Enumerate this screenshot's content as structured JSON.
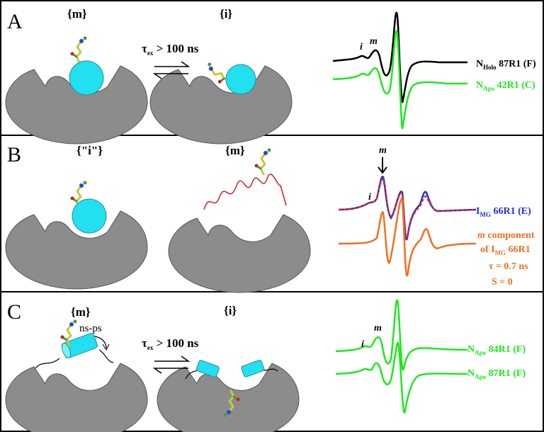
{
  "panels": [
    {
      "label": "A",
      "states": [
        "{m}",
        "{i}"
      ],
      "exchange": {
        "tau": "τ",
        "sub": "ex",
        "rest": " > 100 ns"
      },
      "peaks": [
        "i",
        "m"
      ],
      "spectra": [
        {
          "main": "N",
          "sub": "Holo",
          "rest": " 87R1 (F)"
        },
        {
          "main": "N",
          "sub": "Apo",
          "rest": " 42R1 (C)"
        }
      ]
    },
    {
      "label": "B",
      "states": [
        "{\"i\"}",
        "{m}"
      ],
      "peaks": [
        "i",
        "m"
      ],
      "spectra": [
        {
          "main": "I",
          "sub": "MG",
          "rest": " 66R1 (E)"
        }
      ],
      "component": {
        "italic": "m",
        "line1": " component",
        "line2": "of I",
        "sub": "MG",
        "line2rest": " 66R1",
        "tau": "τ = 0.7 ns",
        "order": "S = 0"
      }
    },
    {
      "label": "C",
      "states": [
        "{m}",
        "{i}"
      ],
      "motion": "ns-ps",
      "exchange": {
        "tau": "τ",
        "sub": "ex",
        "rest": " > 100 ns"
      },
      "peaks": [
        "i",
        "m"
      ],
      "spectra": [
        {
          "main": "N",
          "sub": "Apo",
          "rest": " 84R1 (F)"
        },
        {
          "main": "N",
          "sub": "Apo",
          "rest": " 87R1 (F)"
        }
      ]
    }
  ]
}
